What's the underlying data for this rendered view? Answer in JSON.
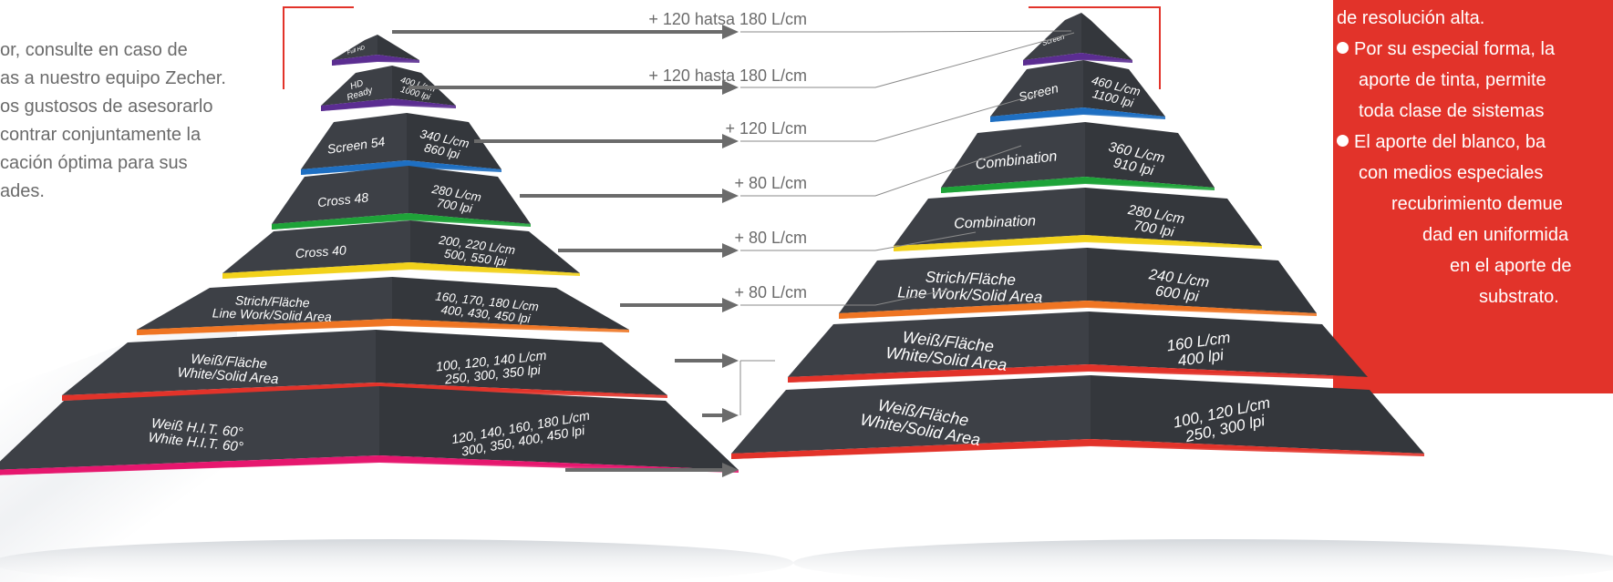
{
  "intro_text": {
    "lines": [
      "or, consulte en caso de",
      "as a nuestro equipo Zecher.",
      "os gustosos de asesorarlo",
      "contrar conjuntamente la",
      "cación óptima para sus",
      "ades."
    ]
  },
  "arrow_labels": [
    "+ 120 hatsa 180 L/cm",
    "+ 120 hasta 180 L/cm",
    "+ 120 L/cm",
    "+ 80 L/cm",
    "+ 80 L/cm",
    "+ 80 L/cm"
  ],
  "left_pyramid": {
    "tiers": [
      {
        "name": [
          "Full HD"
        ],
        "spec": [
          ""
        ],
        "color": "#5b2d91"
      },
      {
        "name": [
          "HD",
          "Ready"
        ],
        "spec": [
          "400 L/cm",
          "1000 lpi"
        ],
        "color": "#5b2d91"
      },
      {
        "name": [
          "Screen 54"
        ],
        "spec": [
          "340 L/cm",
          "860 lpi"
        ],
        "color": "#1e6fc2"
      },
      {
        "name": [
          "Cross 48"
        ],
        "spec": [
          "280 L/cm",
          "700 lpi"
        ],
        "color": "#1ea339"
      },
      {
        "name": [
          "Cross 40"
        ],
        "spec": [
          "200, 220 L/cm",
          "500, 550 lpi"
        ],
        "color": "#f2d21c"
      },
      {
        "name": [
          "Strich/Fläche",
          "Line Work/Solid Area"
        ],
        "spec": [
          "160, 170, 180 L/cm",
          "400, 430, 450 lpi"
        ],
        "color": "#ee7623"
      },
      {
        "name": [
          "Weiß/Fläche",
          "White/Solid Area"
        ],
        "spec": [
          "100, 120, 140 L/cm",
          "250, 300, 350 lpi"
        ],
        "color": "#e2332a"
      },
      {
        "name": [
          "Weiß H.I.T. 60°",
          "White H.I.T. 60°"
        ],
        "spec": [
          "120, 140, 160, 180 L/cm",
          "300, 350, 400, 450 lpi"
        ],
        "color": "#e5176e"
      }
    ]
  },
  "right_pyramid": {
    "tiers": [
      {
        "name": [
          "Screen"
        ],
        "spec": [
          ""
        ],
        "color": "#5b2d91"
      },
      {
        "name": [
          "Screen"
        ],
        "spec": [
          "460 L/cm",
          "1100 lpi"
        ],
        "color": "#1e6fc2"
      },
      {
        "name": [
          "Combination"
        ],
        "spec": [
          "360 L/cm",
          "910 lpi"
        ],
        "color": "#1ea339"
      },
      {
        "name": [
          "Combination"
        ],
        "spec": [
          "280 L/cm",
          "700 lpi"
        ],
        "color": "#f2d21c"
      },
      {
        "name": [
          "Strich/Fläche",
          "Line Work/Solid Area"
        ],
        "spec": [
          "240 L/cm",
          "600 lpi"
        ],
        "color": "#ee7623"
      },
      {
        "name": [
          "Weiß/Fläche",
          "White/Solid Area"
        ],
        "spec": [
          "160 L/cm",
          "400 lpi"
        ],
        "color": "#e2332a"
      },
      {
        "name": [
          "Weiß/Fläche",
          "White/Solid Area"
        ],
        "spec": [
          "100, 120 L/cm",
          "250, 300 lpi"
        ],
        "color": "#e2332a"
      }
    ]
  },
  "feature_box": {
    "lines": [
      {
        "text": "de resolución alta.",
        "bullet": false
      },
      {
        "text": "Por su especial forma, la",
        "bullet": true
      },
      {
        "text": "aporte de tinta, permite",
        "bullet": false
      },
      {
        "text": "toda clase de sistemas",
        "bullet": false
      },
      {
        "text": "El aporte del blanco, ba",
        "bullet": true
      },
      {
        "text": "con medios especiales",
        "bullet": false
      },
      {
        "text": "recubrimiento demue",
        "bullet": false
      },
      {
        "text": "dad en uniformida",
        "bullet": false
      },
      {
        "text": "en el aporte de",
        "bullet": false
      },
      {
        "text": "substrato.",
        "bullet": false
      }
    ]
  },
  "colors": {
    "red": "#e2332a",
    "tier_dark": "#3a3d42",
    "arrow": "#6b6b6b"
  }
}
